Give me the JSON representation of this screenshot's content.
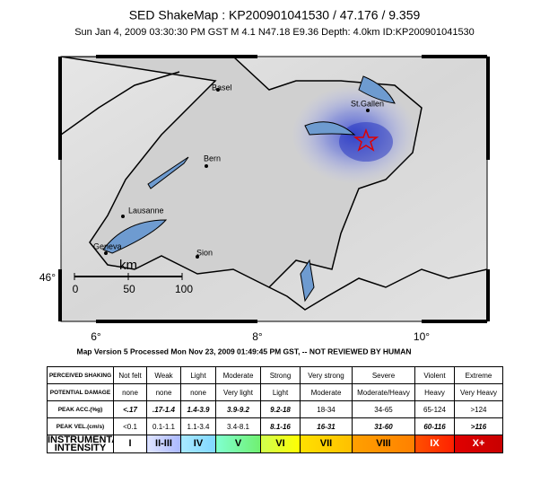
{
  "header": {
    "title": "SED ShakeMap : KP200901041530 / 47.176 / 9.359",
    "subtitle": "Sun Jan  4, 2009 03:30:30 PM GST   M 4.1    N47.18 E9.36   Depth: 4.0km   ID:KP200901041530"
  },
  "map": {
    "cities": [
      "Basel",
      "St.Gallen",
      "Bern",
      "Lausanne",
      "Geneva",
      "Sion"
    ],
    "scale": {
      "unit": "km",
      "labels": [
        "0",
        "50",
        "100"
      ]
    },
    "lon_labels": [
      "6°",
      "8°",
      "10°"
    ],
    "lat_labels": [
      "46°"
    ]
  },
  "note": "Map Version 5 Processed Mon Nov 23, 2009 01:49:45 PM GST, -- NOT REVIEWED BY HUMAN",
  "table": {
    "rows": [
      [
        "PERCEIVED SHAKING",
        "Not felt",
        "Weak",
        "Light",
        "Moderate",
        "Strong",
        "Very strong",
        "Severe",
        "Violent",
        "Extreme"
      ],
      [
        "POTENTIAL DAMAGE",
        "none",
        "none",
        "none",
        "Very light",
        "Light",
        "Moderate",
        "Moderate/Heavy",
        "Heavy",
        "Very Heavy"
      ],
      [
        "PEAK ACC.(%g)",
        "<.17",
        ".17-1.4",
        "1.4-3.9",
        "3.9-9.2",
        "9.2-18",
        "18-34",
        "34-65",
        "65-124",
        ">124"
      ],
      [
        "PEAK VEL.(cm/s)",
        "<0.1",
        "0.1-1.1",
        "1.1-3.4",
        "3.4-8.1",
        "8.1-16",
        "16-31",
        "31-60",
        "60-116",
        ">116"
      ],
      [
        "INSTRUMENTAL INTENSITY",
        "I",
        "II-III",
        "IV",
        "V",
        "VI",
        "VII",
        "VIII",
        "IX",
        "X+"
      ]
    ]
  }
}
